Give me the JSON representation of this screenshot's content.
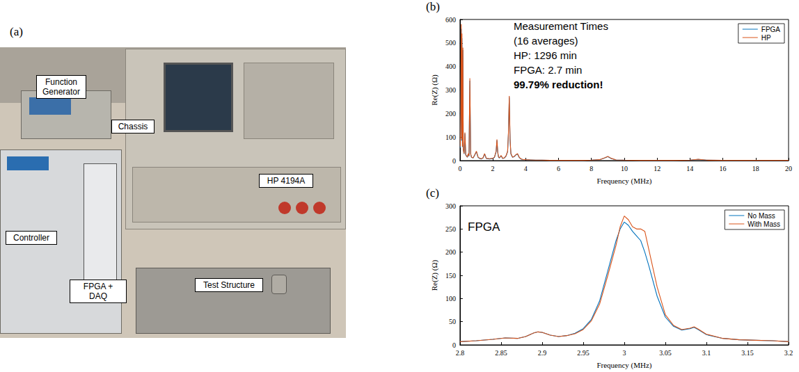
{
  "photo": {
    "panel": "(a)",
    "labels": [
      "Function Generator",
      "Chassis",
      "HP 4194A",
      "Controller",
      "FPGA + DAQ",
      "Test Structure"
    ]
  },
  "chart_data": [
    {
      "type": "line",
      "panel": "(b)",
      "x_label": "Frequency (MHz)",
      "y_label": "Re(Z) (Ω)",
      "annotations": [
        "Measurement Times",
        "(16 averages)",
        "HP: 1296 min",
        "FPGA: 2.7 min",
        "99.79% reduction!"
      ],
      "x": [
        0.02,
        0.05,
        0.08,
        0.1,
        0.12,
        0.15,
        0.18,
        0.2,
        0.25,
        0.3,
        0.35,
        0.4,
        0.45,
        0.5,
        0.55,
        0.6,
        0.65,
        0.7,
        0.8,
        0.9,
        1.0,
        1.1,
        1.2,
        1.3,
        1.4,
        1.5,
        1.6,
        1.8,
        2.0,
        2.1,
        2.2,
        2.25,
        2.3,
        2.35,
        2.4,
        2.5,
        2.6,
        2.7,
        2.8,
        2.9,
        2.95,
        3.0,
        3.05,
        3.1,
        3.2,
        3.3,
        3.4,
        3.5,
        3.6,
        3.7,
        3.8,
        4.0,
        4.3,
        4.6,
        5.0,
        5.5,
        6.0,
        6.5,
        7.0,
        7.5,
        8.0,
        8.5,
        8.8,
        9.0,
        9.2,
        9.5,
        10,
        11,
        12,
        13,
        14,
        14.5,
        15,
        16,
        17,
        18,
        19,
        20
      ],
      "series": [
        {
          "name": "FPGA",
          "color": "#0072BD",
          "values": [
            55,
            190,
            560,
            85,
            520,
            58,
            470,
            48,
            28,
            115,
            24,
            19,
            14,
            28,
            19,
            340,
            28,
            14,
            11,
            24,
            38,
            14,
            9,
            7,
            11,
            28,
            9,
            7,
            9,
            14,
            38,
            86,
            33,
            14,
            11,
            20,
            9,
            11,
            19,
            38,
            115,
            270,
            86,
            28,
            14,
            17,
            24,
            28,
            14,
            7,
            5,
            4,
            3,
            2,
            2,
            1,
            1,
            1,
            1,
            1,
            2,
            4,
            11,
            17,
            9,
            3,
            2,
            1,
            1,
            1,
            2,
            5,
            2,
            1,
            1,
            1,
            1,
            1
          ]
        },
        {
          "name": "HP",
          "color": "#D95319",
          "values": [
            60,
            200,
            580,
            90,
            540,
            60,
            480,
            50,
            30,
            120,
            25,
            20,
            15,
            30,
            20,
            350,
            30,
            15,
            12,
            25,
            40,
            15,
            10,
            8,
            12,
            30,
            10,
            8,
            10,
            15,
            40,
            90,
            35,
            15,
            12,
            22,
            10,
            12,
            20,
            40,
            120,
            275,
            90,
            30,
            15,
            18,
            25,
            30,
            15,
            8,
            5,
            4,
            3,
            2,
            2,
            1,
            1,
            1,
            1,
            1,
            2,
            4,
            12,
            18,
            10,
            3,
            2,
            1,
            1,
            1,
            2,
            6,
            2,
            1,
            1,
            1,
            1,
            1
          ]
        }
      ],
      "xlim": [
        0,
        20
      ],
      "xticks": [
        0,
        2,
        4,
        6,
        8,
        10,
        12,
        14,
        16,
        18,
        20
      ],
      "ylim": [
        0,
        600
      ],
      "yticks": [
        0,
        100,
        200,
        300,
        400,
        500,
        600
      ],
      "grid": false,
      "legend": "upper right"
    },
    {
      "type": "line",
      "panel": "(c)",
      "x_label": "Frequency (MHz)",
      "y_label": "Re(Z) (Ω)",
      "annotations": [
        "FPGA"
      ],
      "x": [
        2.8,
        2.82,
        2.84,
        2.855,
        2.87,
        2.88,
        2.89,
        2.895,
        2.9,
        2.91,
        2.92,
        2.93,
        2.94,
        2.95,
        2.96,
        2.97,
        2.98,
        2.99,
        2.995,
        3.0,
        3.005,
        3.01,
        3.015,
        3.02,
        3.025,
        3.03,
        3.04,
        3.05,
        3.06,
        3.07,
        3.08,
        3.085,
        3.09,
        3.1,
        3.12,
        3.14,
        3.16,
        3.18,
        3.2
      ],
      "series": [
        {
          "name": "No Mass",
          "color": "#0072BD",
          "values": [
            7,
            9,
            12,
            15,
            14,
            18,
            26,
            28,
            27,
            21,
            18,
            20,
            25,
            35,
            55,
            95,
            160,
            225,
            250,
            265,
            258,
            245,
            235,
            225,
            200,
            170,
            105,
            60,
            40,
            32,
            35,
            38,
            33,
            22,
            14,
            11,
            10,
            9,
            7
          ]
        },
        {
          "name": "With Mass",
          "color": "#D95319",
          "values": [
            7,
            9,
            12,
            15,
            14,
            18,
            26,
            28,
            27,
            21,
            18,
            20,
            24,
            33,
            52,
            88,
            150,
            215,
            255,
            278,
            270,
            255,
            250,
            250,
            245,
            205,
            125,
            65,
            42,
            33,
            36,
            39,
            34,
            23,
            14,
            11,
            10,
            9,
            7
          ]
        }
      ],
      "xlim": [
        2.8,
        3.2
      ],
      "xticks": [
        2.8,
        2.85,
        2.9,
        2.95,
        3,
        3.05,
        3.1,
        3.15,
        3.2
      ],
      "ylim": [
        0,
        300
      ],
      "yticks": [
        0,
        50,
        100,
        150,
        200,
        250,
        300
      ],
      "grid": false,
      "legend": "upper right"
    }
  ]
}
